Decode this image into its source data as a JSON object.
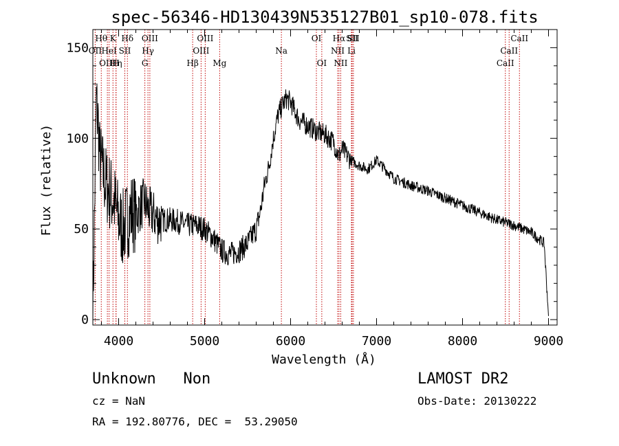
{
  "chart_data": {
    "type": "line",
    "title": "spec-56346-HD130439N535127B01_sp10-078.fits",
    "xlabel": "Wavelength (Å)",
    "ylabel": "Flux (relative)",
    "xlim": [
      3700,
      9100
    ],
    "ylim": [
      -3,
      160
    ],
    "x_ticks": [
      4000,
      5000,
      6000,
      7000,
      8000,
      9000
    ],
    "y_ticks": [
      0,
      50,
      100,
      150
    ],
    "grid": false,
    "series_color": "#000000",
    "line_marker_color": "#c00000",
    "spectrum_anchor_points": {
      "x": [
        3700,
        3720,
        3740,
        3760,
        3780,
        3800,
        3850,
        3900,
        3950,
        4000,
        4050,
        4100,
        4150,
        4200,
        4250,
        4300,
        4350,
        4400,
        4450,
        4500,
        4600,
        4700,
        4800,
        4900,
        5000,
        5100,
        5200,
        5300,
        5400,
        5500,
        5600,
        5650,
        5700,
        5750,
        5800,
        5850,
        5900,
        5950,
        6000,
        6050,
        6100,
        6200,
        6300,
        6400,
        6500,
        6560,
        6600,
        6700,
        6800,
        6900,
        7000,
        7200,
        7400,
        7600,
        7800,
        8000,
        8200,
        8400,
        8600,
        8800,
        8950,
        9000
      ],
      "y": [
        2,
        60,
        120,
        110,
        90,
        85,
        75,
        70,
        65,
        55,
        50,
        55,
        60,
        58,
        62,
        65,
        60,
        58,
        55,
        55,
        55,
        54,
        52,
        52,
        50,
        45,
        38,
        36,
        38,
        42,
        50,
        60,
        75,
        85,
        100,
        112,
        118,
        122,
        120,
        115,
        110,
        107,
        104,
        102,
        98,
        90,
        94,
        88,
        85,
        83,
        88,
        78,
        74,
        71,
        67,
        63,
        59,
        55,
        52,
        48,
        42,
        2
      ]
    },
    "spectral_lines": [
      {
        "label": "OII",
        "x": 3727,
        "row": 1
      },
      {
        "label": "Hθ",
        "x": 3798,
        "row": 0
      },
      {
        "label": "OIII",
        "x": 3869,
        "row": 2
      },
      {
        "label": "HeI",
        "x": 3889,
        "row": 1
      },
      {
        "label": "K",
        "x": 3934,
        "row": 0
      },
      {
        "label": "Hη",
        "x": 3970,
        "row": 2
      },
      {
        "label": "H",
        "x": 3969,
        "row": 2
      },
      {
        "label": "SII",
        "x": 4072,
        "row": 1
      },
      {
        "label": "Hδ",
        "x": 4102,
        "row": 0
      },
      {
        "label": "G",
        "x": 4305,
        "row": 2
      },
      {
        "label": "Hγ",
        "x": 4341,
        "row": 1
      },
      {
        "label": "OIII",
        "x": 4363,
        "row": 0
      },
      {
        "label": "Hβ",
        "x": 4861,
        "row": 2
      },
      {
        "label": "OIII",
        "x": 4959,
        "row": 1
      },
      {
        "label": "OIII",
        "x": 5007,
        "row": 0
      },
      {
        "label": "Mg",
        "x": 5175,
        "row": 2
      },
      {
        "label": "Na",
        "x": 5893,
        "row": 1
      },
      {
        "label": "OI",
        "x": 6300,
        "row": 0
      },
      {
        "label": "OI",
        "x": 6363,
        "row": 2
      },
      {
        "label": "NII",
        "x": 6548,
        "row": 1
      },
      {
        "label": "Hα",
        "x": 6563,
        "row": 0
      },
      {
        "label": "NII",
        "x": 6583,
        "row": 2
      },
      {
        "label": "SII",
        "x": 6716,
        "row": 0
      },
      {
        "label": "Li",
        "x": 6708,
        "row": 1
      },
      {
        "label": "SII",
        "x": 6731,
        "row": 0
      },
      {
        "label": "CaII",
        "x": 8498,
        "row": 2
      },
      {
        "label": "CaII",
        "x": 8542,
        "row": 1
      },
      {
        "label": "CaII",
        "x": 8662,
        "row": 0
      }
    ]
  },
  "info": {
    "class_text": "Unknown   Non",
    "survey_text": "LAMOST DR2",
    "cz_text": "cz = NaN",
    "obs_date_text": "Obs-Date: 20130222",
    "coords_text": "RA = 192.80776, DEC =  53.29050"
  }
}
